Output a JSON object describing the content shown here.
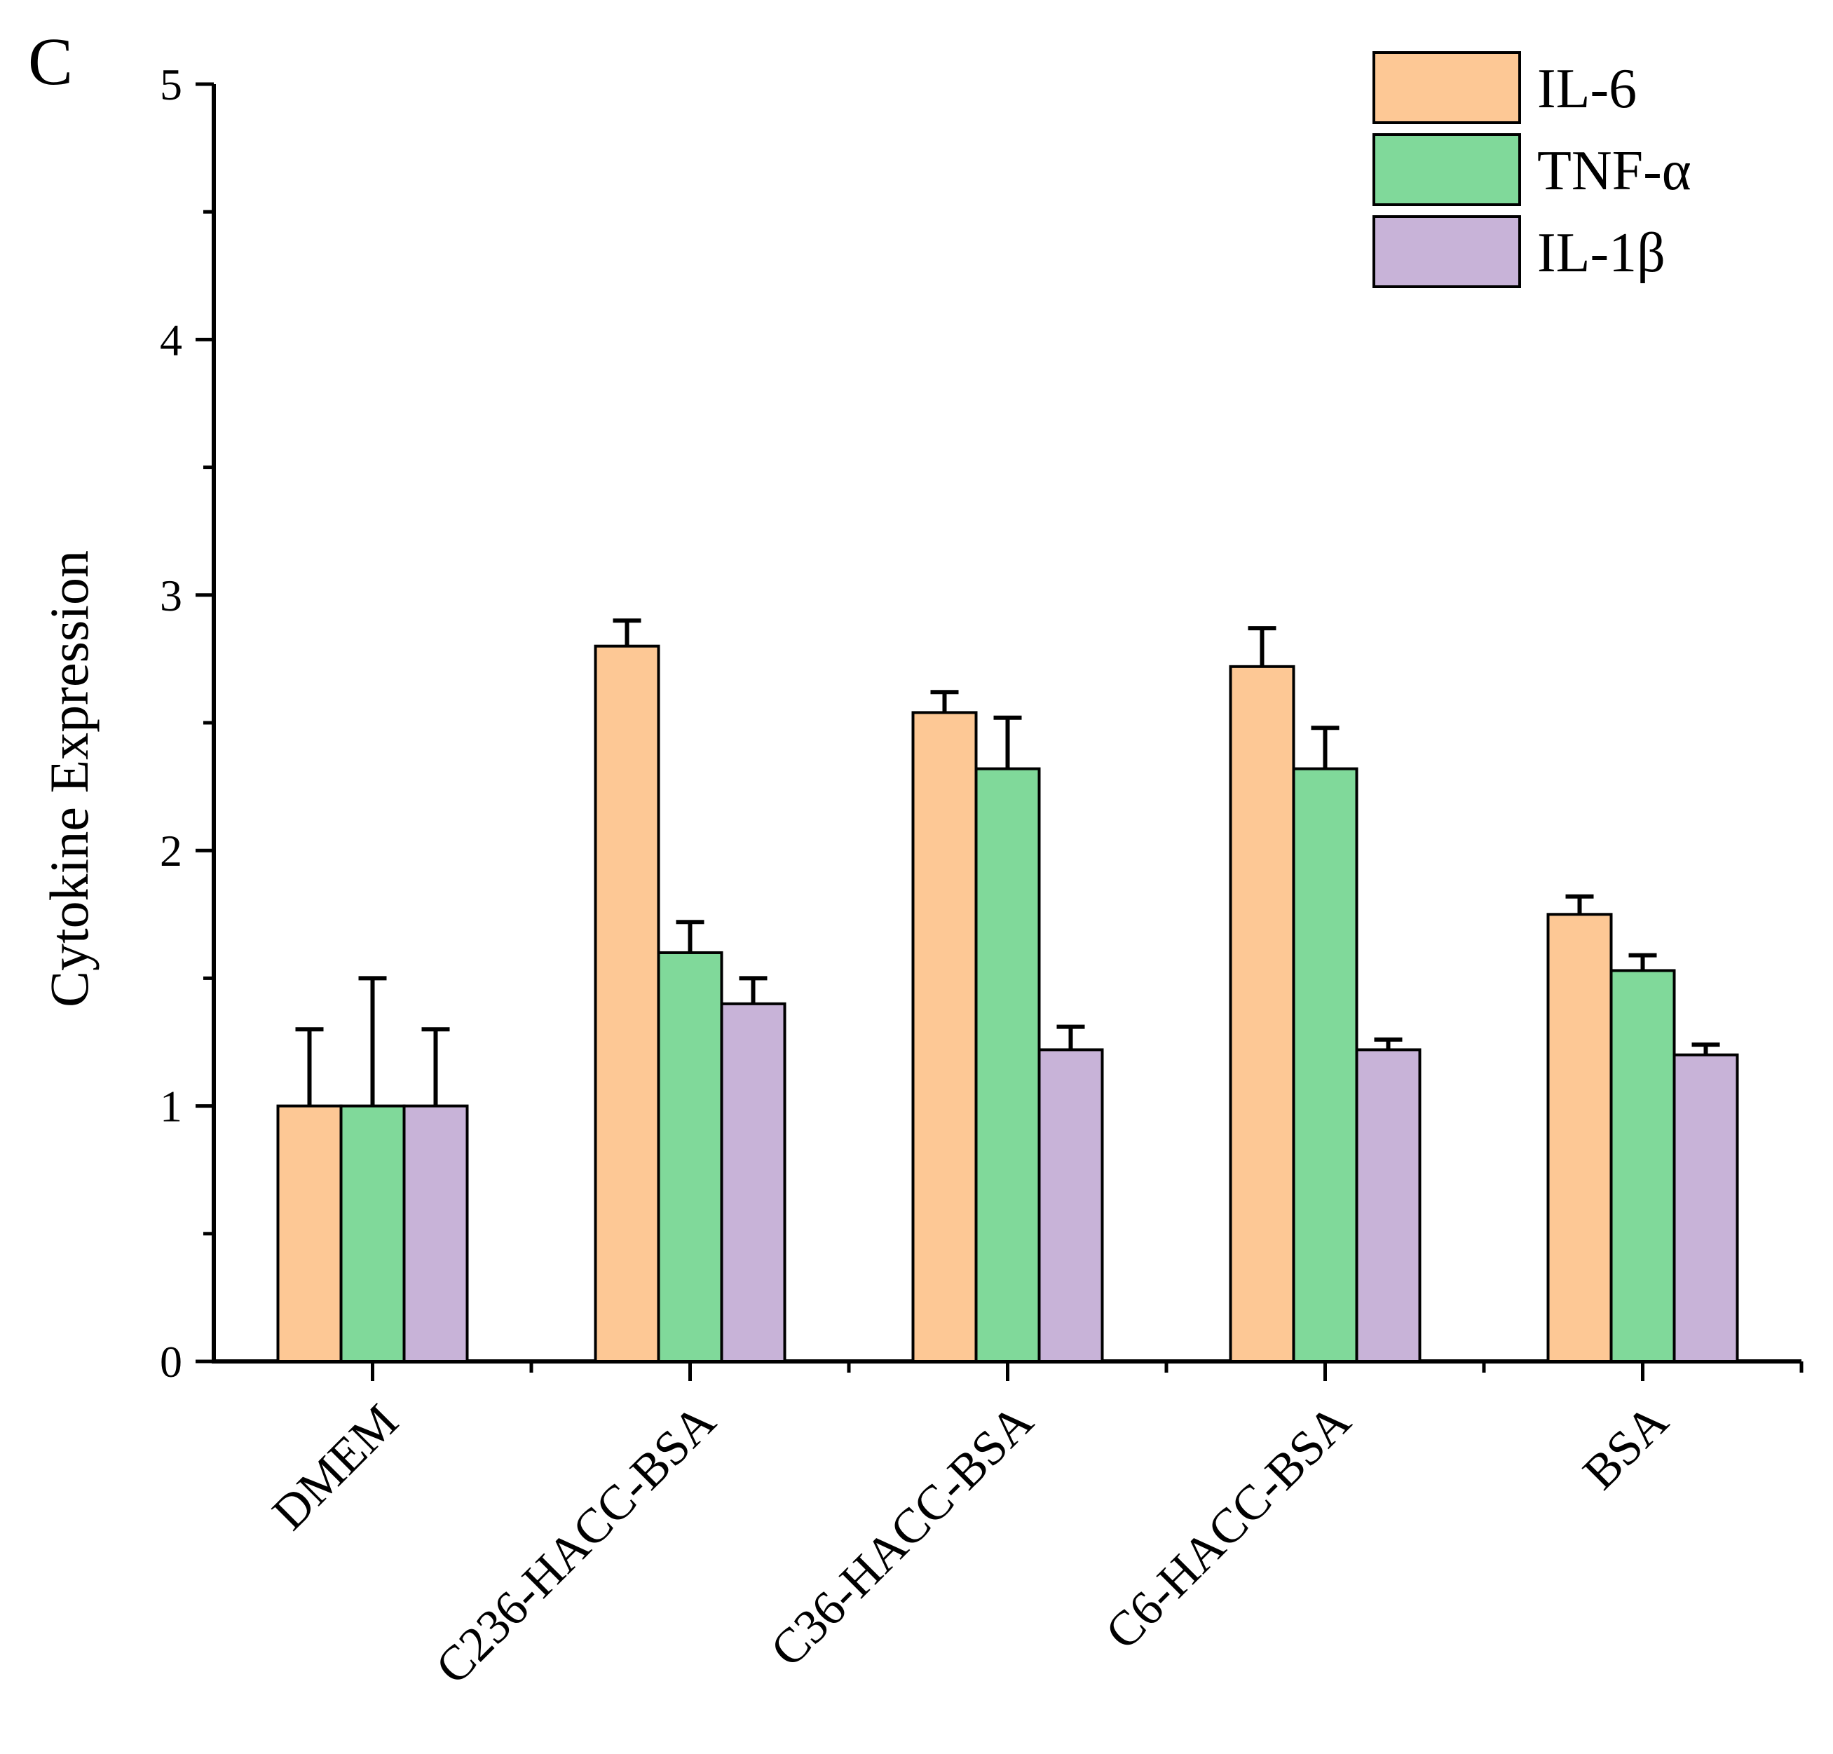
{
  "panel_label": "C",
  "chart_data": {
    "type": "bar",
    "title": "",
    "xlabel": "",
    "ylabel": "Cytokine Expression",
    "ylim": [
      0,
      5
    ],
    "yticks": [
      "0",
      "1",
      "2",
      "3",
      "4",
      "5"
    ],
    "categories": [
      "DMEM",
      "C236-HACC-BSA",
      "C36-HACC-BSA",
      "C6-HACC-BSA",
      "BSA"
    ],
    "series": [
      {
        "name": "IL-6",
        "color": "#FDC895",
        "values": [
          1.0,
          2.8,
          2.54,
          2.72,
          1.75
        ],
        "errors": [
          0.3,
          0.1,
          0.08,
          0.15,
          0.07
        ]
      },
      {
        "name": "TNF-α",
        "color": "#80D99A",
        "values": [
          1.0,
          1.6,
          2.32,
          2.32,
          1.53
        ],
        "errors": [
          0.5,
          0.12,
          0.2,
          0.16,
          0.06
        ]
      },
      {
        "name": "IL-1β",
        "color": "#C8B3D8",
        "values": [
          1.0,
          1.4,
          1.22,
          1.22,
          1.2
        ],
        "errors": [
          0.3,
          0.1,
          0.09,
          0.04,
          0.04
        ]
      }
    ],
    "grid": false,
    "legend": "top-right"
  }
}
